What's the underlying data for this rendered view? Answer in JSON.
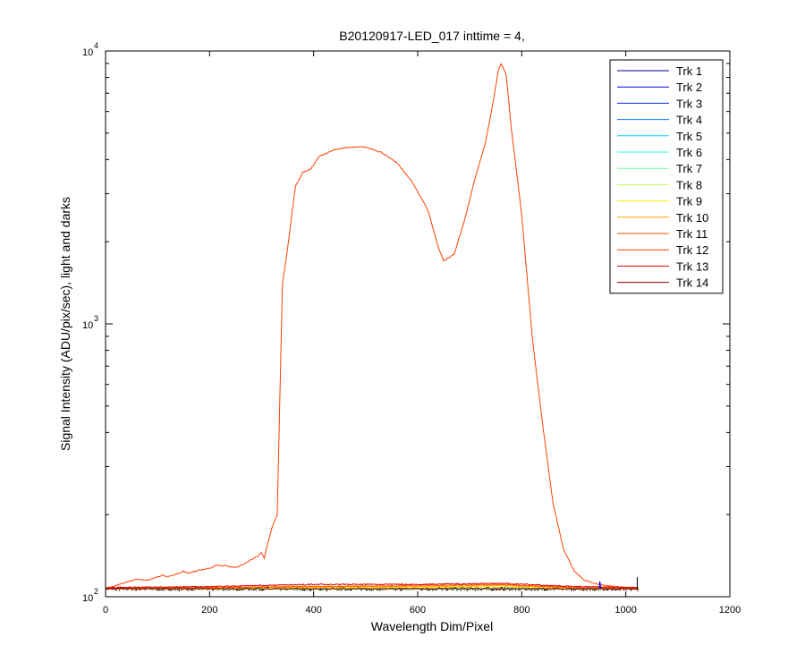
{
  "chart_data": {
    "type": "line",
    "title": "B20120917-LED_017 inttime = 4,",
    "xlabel": "Wavelength Dim/Pixel",
    "ylabel": "Signal Intensity (ADU/pix/sec), light and darks",
    "xlim": [
      0,
      1200
    ],
    "ylim": [
      100,
      10000
    ],
    "yscale": "log",
    "x_ticks": [
      "0",
      "200",
      "400",
      "600",
      "800",
      "1000",
      "1200"
    ],
    "y_ticks": [
      {
        "base": "10",
        "exp": "2",
        "value": 100
      },
      {
        "base": "10",
        "exp": "3",
        "value": 1000
      },
      {
        "base": "10",
        "exp": "4",
        "value": 10000
      }
    ],
    "grid": false,
    "legend_position": "top-right",
    "series": [
      {
        "name": "Trk 1",
        "color": "#00008f",
        "points": [
          [
            0,
            107
          ],
          [
            200,
            107
          ],
          [
            400,
            107
          ],
          [
            600,
            107
          ],
          [
            800,
            107
          ],
          [
            1024,
            107
          ]
        ]
      },
      {
        "name": "Trk 2",
        "color": "#0000df",
        "points": [
          [
            0,
            107
          ],
          [
            200,
            107
          ],
          [
            400,
            107
          ],
          [
            600,
            107
          ],
          [
            800,
            107
          ],
          [
            1024,
            107
          ]
        ]
      },
      {
        "name": "Trk 3",
        "color": "#0030ff",
        "points": [
          [
            0,
            107
          ],
          [
            200,
            107
          ],
          [
            400,
            107
          ],
          [
            600,
            107
          ],
          [
            800,
            107
          ],
          [
            1024,
            107
          ]
        ]
      },
      {
        "name": "Trk 4",
        "color": "#0080ff",
        "points": [
          [
            0,
            107
          ],
          [
            200,
            107
          ],
          [
            400,
            107
          ],
          [
            600,
            107
          ],
          [
            800,
            107
          ],
          [
            1024,
            107
          ]
        ]
      },
      {
        "name": "Trk 5",
        "color": "#00d0ff",
        "points": [
          [
            0,
            107
          ],
          [
            200,
            107
          ],
          [
            400,
            107
          ],
          [
            600,
            107
          ],
          [
            800,
            107
          ],
          [
            1024,
            107
          ]
        ]
      },
      {
        "name": "Trk 6",
        "color": "#20ffdf",
        "points": [
          [
            0,
            107
          ],
          [
            200,
            107
          ],
          [
            400,
            107
          ],
          [
            600,
            107
          ],
          [
            800,
            107
          ],
          [
            1024,
            107
          ]
        ]
      },
      {
        "name": "Trk 7",
        "color": "#70ff8f",
        "points": [
          [
            0,
            107
          ],
          [
            200,
            107
          ],
          [
            400,
            107
          ],
          [
            600,
            107
          ],
          [
            800,
            107
          ],
          [
            1024,
            107
          ]
        ]
      },
      {
        "name": "Trk 8",
        "color": "#bfff40",
        "points": [
          [
            0,
            107
          ],
          [
            200,
            107
          ],
          [
            400,
            107
          ],
          [
            600,
            107
          ],
          [
            800,
            107
          ],
          [
            1024,
            107
          ]
        ]
      },
      {
        "name": "Trk 9",
        "color": "#ffef00",
        "points": [
          [
            0,
            107
          ],
          [
            200,
            107
          ],
          [
            400,
            108
          ],
          [
            600,
            108
          ],
          [
            760,
            109
          ],
          [
            900,
            107
          ],
          [
            1024,
            107
          ]
        ]
      },
      {
        "name": "Trk 10",
        "color": "#ffa000",
        "points": [
          [
            0,
            107
          ],
          [
            200,
            108
          ],
          [
            400,
            109
          ],
          [
            600,
            109
          ],
          [
            760,
            110
          ],
          [
            900,
            108
          ],
          [
            1024,
            107
          ]
        ]
      },
      {
        "name": "Trk 11",
        "color": "#ff5000",
        "points": [
          [
            0,
            107
          ],
          [
            200,
            108
          ],
          [
            400,
            109
          ],
          [
            600,
            110
          ],
          [
            760,
            111
          ],
          [
            900,
            108
          ],
          [
            1024,
            107
          ]
        ]
      },
      {
        "name": "Trk 12",
        "color": "#ff4000",
        "points": [
          [
            0,
            107
          ],
          [
            40,
            113
          ],
          [
            60,
            116
          ],
          [
            80,
            115
          ],
          [
            100,
            118
          ],
          [
            110,
            120
          ],
          [
            120,
            118
          ],
          [
            140,
            122
          ],
          [
            150,
            124
          ],
          [
            160,
            122
          ],
          [
            180,
            125
          ],
          [
            200,
            127
          ],
          [
            210,
            130
          ],
          [
            230,
            130
          ],
          [
            250,
            128
          ],
          [
            270,
            133
          ],
          [
            290,
            140
          ],
          [
            300,
            145
          ],
          [
            305,
            138
          ],
          [
            310,
            152
          ],
          [
            320,
            180
          ],
          [
            330,
            200
          ],
          [
            340,
            1400
          ],
          [
            350,
            1900
          ],
          [
            365,
            3200
          ],
          [
            380,
            3600
          ],
          [
            395,
            3700
          ],
          [
            410,
            4100
          ],
          [
            440,
            4350
          ],
          [
            470,
            4450
          ],
          [
            500,
            4450
          ],
          [
            530,
            4250
          ],
          [
            560,
            3900
          ],
          [
            590,
            3300
          ],
          [
            620,
            2600
          ],
          [
            640,
            1900
          ],
          [
            650,
            1700
          ],
          [
            670,
            1800
          ],
          [
            690,
            2400
          ],
          [
            710,
            3400
          ],
          [
            730,
            4600
          ],
          [
            745,
            6500
          ],
          [
            755,
            8500
          ],
          [
            760,
            9000
          ],
          [
            770,
            8200
          ],
          [
            780,
            5200
          ],
          [
            800,
            2500
          ],
          [
            820,
            900
          ],
          [
            840,
            430
          ],
          [
            860,
            220
          ],
          [
            880,
            150
          ],
          [
            900,
            125
          ],
          [
            920,
            115
          ],
          [
            940,
            112
          ],
          [
            960,
            110
          ],
          [
            1000,
            108
          ],
          [
            1024,
            108
          ]
        ]
      },
      {
        "name": "Trk 13",
        "color": "#df0000",
        "points": [
          [
            0,
            108
          ],
          [
            200,
            109
          ],
          [
            400,
            111
          ],
          [
            600,
            111
          ],
          [
            760,
            112
          ],
          [
            900,
            109
          ],
          [
            1024,
            108
          ]
        ]
      },
      {
        "name": "Trk 14",
        "color": "#8f0000",
        "points": [
          [
            0,
            107
          ],
          [
            200,
            107
          ],
          [
            400,
            107
          ],
          [
            600,
            107
          ],
          [
            800,
            107
          ],
          [
            1024,
            107
          ]
        ]
      }
    ]
  }
}
